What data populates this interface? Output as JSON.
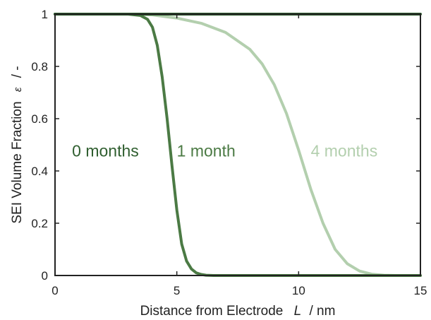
{
  "chart_data": {
    "type": "line",
    "xlabel": {
      "prefix": "Distance from Electrode",
      "symbol": "L",
      "unit": "/  nm"
    },
    "ylabel": {
      "prefix": "SEI Volume Fraction",
      "symbol": "ε",
      "unit": "/  -"
    },
    "xlim": [
      0,
      15
    ],
    "ylim": [
      0,
      1
    ],
    "xticks": [
      0,
      5,
      10,
      15
    ],
    "yticks": [
      0,
      0.2,
      0.4,
      0.6,
      0.8,
      1
    ],
    "ytick_labels": [
      "0",
      "0.2",
      "0.4",
      "0.6",
      "0.8",
      "1"
    ],
    "grid": false,
    "series": [
      {
        "name": "0 months",
        "color": "#2f5e2f",
        "x": [
          0,
          15
        ],
        "y": [
          1,
          1
        ]
      },
      {
        "name": "1 month",
        "color": "#4b7a44",
        "x": [
          0,
          3.0,
          3.5,
          3.8,
          4.0,
          4.2,
          4.4,
          4.6,
          4.8,
          5.0,
          5.2,
          5.4,
          5.6,
          5.8,
          6.0,
          6.2,
          6.5,
          7.0,
          15
        ],
        "y": [
          1,
          1,
          0.995,
          0.98,
          0.95,
          0.88,
          0.76,
          0.6,
          0.42,
          0.25,
          0.12,
          0.055,
          0.025,
          0.01,
          0.004,
          0.001,
          0,
          0,
          0
        ]
      },
      {
        "name": "4 months",
        "color": "#b3cfae",
        "x": [
          0,
          3,
          4,
          5,
          6,
          7,
          8,
          8.5,
          9,
          9.5,
          10,
          10.5,
          11,
          11.5,
          12,
          12.5,
          13,
          13.5,
          14,
          15
        ],
        "y": [
          1,
          1,
          0.997,
          0.985,
          0.965,
          0.93,
          0.865,
          0.81,
          0.73,
          0.62,
          0.48,
          0.33,
          0.2,
          0.1,
          0.045,
          0.017,
          0.005,
          0.001,
          0,
          0
        ]
      }
    ]
  }
}
